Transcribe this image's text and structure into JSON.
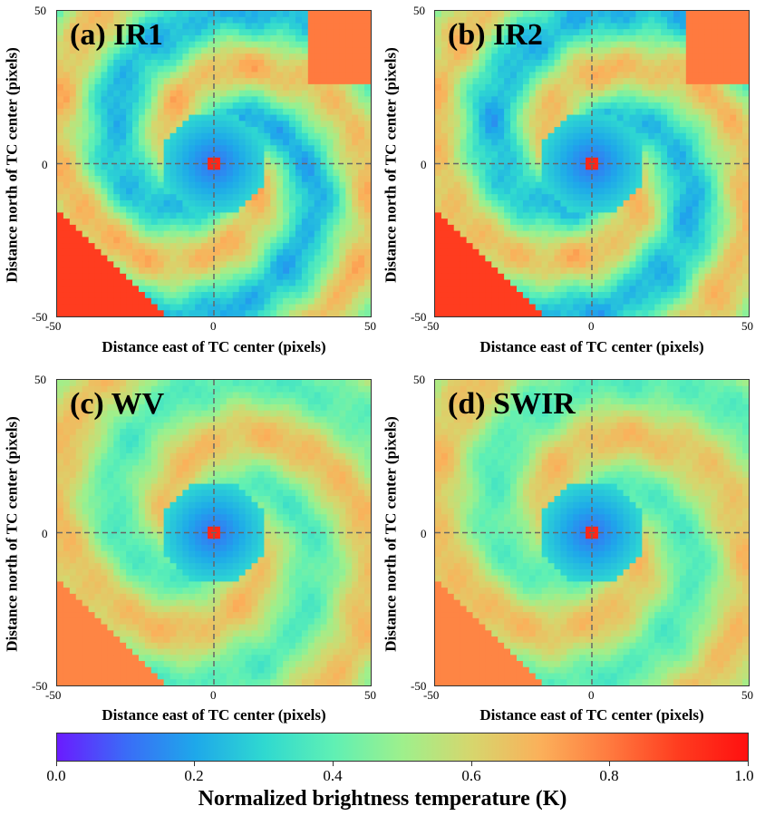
{
  "chart_data": [
    {
      "type": "heatmap",
      "panel_label": "(a) IR1",
      "xlabel": "Distance east of TC center (pixels)",
      "ylabel": "Distance north of TC center (pixels)",
      "xlim": [
        -50,
        50
      ],
      "ylim": [
        -50,
        50
      ],
      "xticks": [
        "-50",
        "0",
        "50"
      ],
      "yticks": [
        "50",
        "0",
        "-50"
      ],
      "crosshair": [
        0,
        0
      ]
    },
    {
      "type": "heatmap",
      "panel_label": "(b) IR2",
      "xlabel": "Distance east of TC center (pixels)",
      "ylabel": "Distance north of TC center (pixels)",
      "xlim": [
        -50,
        50
      ],
      "ylim": [
        -50,
        50
      ],
      "xticks": [
        "-50",
        "0",
        "50"
      ],
      "yticks": [
        "50",
        "0",
        "-50"
      ],
      "crosshair": [
        0,
        0
      ]
    },
    {
      "type": "heatmap",
      "panel_label": "(c) WV",
      "xlabel": "Distance east of TC center (pixels)",
      "ylabel": "Distance north of TC center (pixels)",
      "xlim": [
        -50,
        50
      ],
      "ylim": [
        -50,
        50
      ],
      "xticks": [
        "-50",
        "0",
        "50"
      ],
      "yticks": [
        "50",
        "0",
        "-50"
      ],
      "crosshair": [
        0,
        0
      ]
    },
    {
      "type": "heatmap",
      "panel_label": "(d) SWIR",
      "xlabel": "Distance east of TC center (pixels)",
      "ylabel": "Distance north of TC center (pixels)",
      "xlim": [
        -50,
        50
      ],
      "ylim": [
        -50,
        50
      ],
      "xticks": [
        "-50",
        "0",
        "50"
      ],
      "yticks": [
        "50",
        "0",
        "-50"
      ],
      "crosshair": [
        0,
        0
      ]
    }
  ],
  "colorbar": {
    "label": "Normalized brightness temperature (K)",
    "ticks": [
      "0.0",
      "0.2",
      "0.4",
      "0.6",
      "0.8",
      "1.0"
    ],
    "range": [
      0,
      1
    ],
    "colormap": "rainbow",
    "colors": [
      "#6a1bff",
      "#3a6cf7",
      "#1ea8ea",
      "#2fd9d0",
      "#5ff0b4",
      "#9ef08c",
      "#d6d66d",
      "#fbb05a",
      "#ff7a3f",
      "#ff3c1f",
      "#ff1010"
    ]
  }
}
